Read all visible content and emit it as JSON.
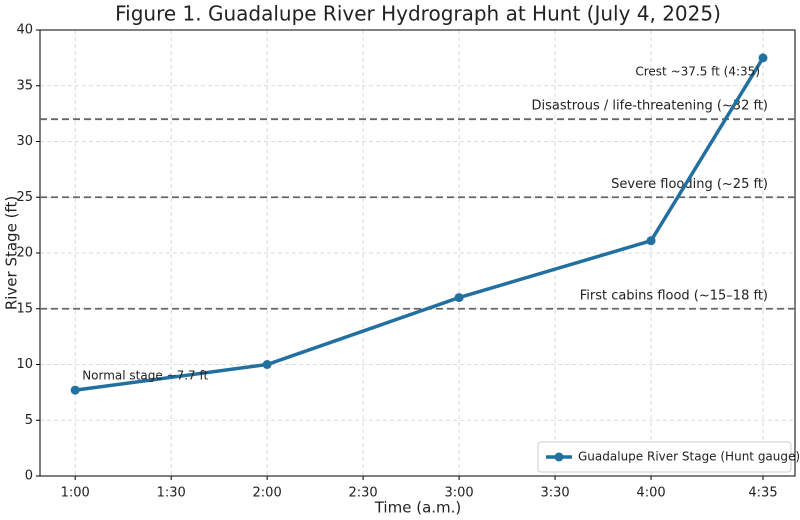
{
  "chart_data": {
    "type": "line",
    "title": "Figure 1. Guadalupe River Hydrograph at Hunt (July 4, 2025)",
    "x_label": "Time (a.m.)",
    "y_label": "River Stage (ft)",
    "x": [
      60,
      120,
      180,
      240,
      275
    ],
    "series": [
      {
        "name": "Guadalupe River Stage (Hunt gauge)",
        "color": "#22709f",
        "values": [
          7.7,
          10,
          16,
          21.1,
          37.5
        ]
      }
    ],
    "xlim": [
      49,
      285
    ],
    "xticks": [
      {
        "value": 60,
        "label": "1:00"
      },
      {
        "value": 90,
        "label": "1:30"
      },
      {
        "value": 120,
        "label": "2:00"
      },
      {
        "value": 150,
        "label": "2:30"
      },
      {
        "value": 180,
        "label": "3:00"
      },
      {
        "value": 210,
        "label": "3:30"
      },
      {
        "value": 240,
        "label": "4:00"
      },
      {
        "value": 275,
        "label": "4:35"
      }
    ],
    "ylim": [
      0,
      40
    ],
    "yticks": [
      0,
      5,
      10,
      15,
      20,
      25,
      30,
      35,
      40
    ],
    "grid": true,
    "legend": "lower right",
    "thresholds": [
      {
        "value": 32,
        "label": "Disastrous / life-threatening (~32 ft)"
      },
      {
        "value": 25,
        "label": "Severe flooding (~25 ft)"
      },
      {
        "value": 15,
        "label": "First cabins flood (~15–18 ft)"
      }
    ],
    "annotations": [
      "Normal stage ~7.7 ft",
      "Crest ~37.5 ft (4:35)"
    ]
  }
}
